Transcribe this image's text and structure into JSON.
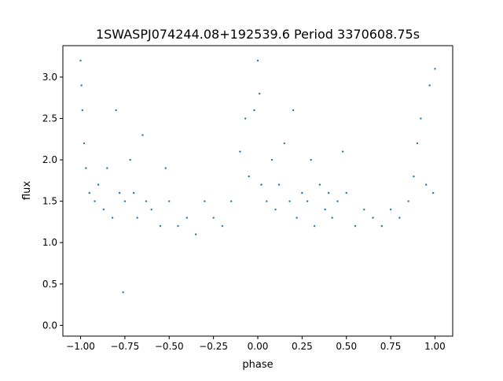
{
  "chart_data": {
    "type": "scatter",
    "title": "1SWASPJ074244.08+192539.6 Period 3370608.75s",
    "xlabel": "phase",
    "ylabel": "flux",
    "xlim": [
      -1.1,
      1.1
    ],
    "ylim": [
      -0.13,
      3.38
    ],
    "xticks": [
      -1.0,
      -0.75,
      -0.5,
      -0.25,
      0.0,
      0.25,
      0.5,
      0.75,
      1.0
    ],
    "xtick_labels": [
      "−1.00",
      "−0.75",
      "−0.50",
      "−0.25",
      "0.00",
      "0.25",
      "0.50",
      "0.75",
      "1.00"
    ],
    "yticks": [
      0.0,
      0.5,
      1.0,
      1.5,
      2.0,
      2.5,
      3.0
    ],
    "ytick_labels": [
      "0.0",
      "0.5",
      "1.0",
      "1.5",
      "2.0",
      "2.5",
      "3.0"
    ],
    "grid": false,
    "point_color": "#1f77b4",
    "series": [
      {
        "points": [
          [
            -1.0,
            3.2
          ],
          [
            -0.995,
            2.9
          ],
          [
            -0.99,
            2.6
          ],
          [
            -0.98,
            2.2
          ],
          [
            -0.97,
            1.9
          ],
          [
            -0.95,
            1.6
          ],
          [
            -0.92,
            1.5
          ],
          [
            -0.9,
            1.7
          ],
          [
            -0.87,
            1.4
          ],
          [
            -0.85,
            1.9
          ],
          [
            -0.82,
            1.3
          ],
          [
            -0.8,
            2.6
          ],
          [
            -0.78,
            1.6
          ],
          [
            -0.76,
            0.4
          ],
          [
            -0.75,
            1.5
          ],
          [
            -0.72,
            2.0
          ],
          [
            -0.7,
            1.6
          ],
          [
            -0.68,
            1.3
          ],
          [
            -0.65,
            2.3
          ],
          [
            -0.63,
            1.5
          ],
          [
            -0.6,
            1.4
          ],
          [
            -0.55,
            1.2
          ],
          [
            -0.52,
            1.9
          ],
          [
            -0.5,
            1.5
          ],
          [
            -0.45,
            1.2
          ],
          [
            -0.4,
            1.3
          ],
          [
            -0.35,
            1.1
          ],
          [
            -0.3,
            1.5
          ],
          [
            -0.25,
            1.3
          ],
          [
            -0.2,
            1.2
          ],
          [
            -0.15,
            1.5
          ],
          [
            -0.1,
            2.1
          ],
          [
            -0.07,
            2.5
          ],
          [
            -0.05,
            1.8
          ],
          [
            -0.02,
            2.6
          ],
          [
            0.0,
            3.2
          ],
          [
            0.01,
            2.8
          ],
          [
            0.02,
            1.7
          ],
          [
            0.05,
            1.5
          ],
          [
            0.08,
            2.0
          ],
          [
            0.1,
            1.4
          ],
          [
            0.12,
            1.7
          ],
          [
            0.15,
            2.2
          ],
          [
            0.18,
            1.5
          ],
          [
            0.2,
            2.6
          ],
          [
            0.22,
            1.3
          ],
          [
            0.25,
            1.6
          ],
          [
            0.28,
            1.5
          ],
          [
            0.3,
            2.0
          ],
          [
            0.32,
            1.2
          ],
          [
            0.35,
            1.7
          ],
          [
            0.38,
            1.4
          ],
          [
            0.4,
            1.6
          ],
          [
            0.42,
            1.3
          ],
          [
            0.45,
            1.5
          ],
          [
            0.48,
            2.1
          ],
          [
            0.5,
            1.6
          ],
          [
            0.55,
            1.2
          ],
          [
            0.6,
            1.4
          ],
          [
            0.65,
            1.3
          ],
          [
            0.7,
            1.2
          ],
          [
            0.75,
            1.4
          ],
          [
            0.8,
            1.3
          ],
          [
            0.85,
            1.5
          ],
          [
            0.88,
            1.8
          ],
          [
            0.9,
            2.2
          ],
          [
            0.92,
            2.5
          ],
          [
            0.95,
            1.7
          ],
          [
            0.97,
            2.9
          ],
          [
            0.99,
            1.6
          ],
          [
            1.0,
            3.1
          ]
        ]
      }
    ]
  }
}
